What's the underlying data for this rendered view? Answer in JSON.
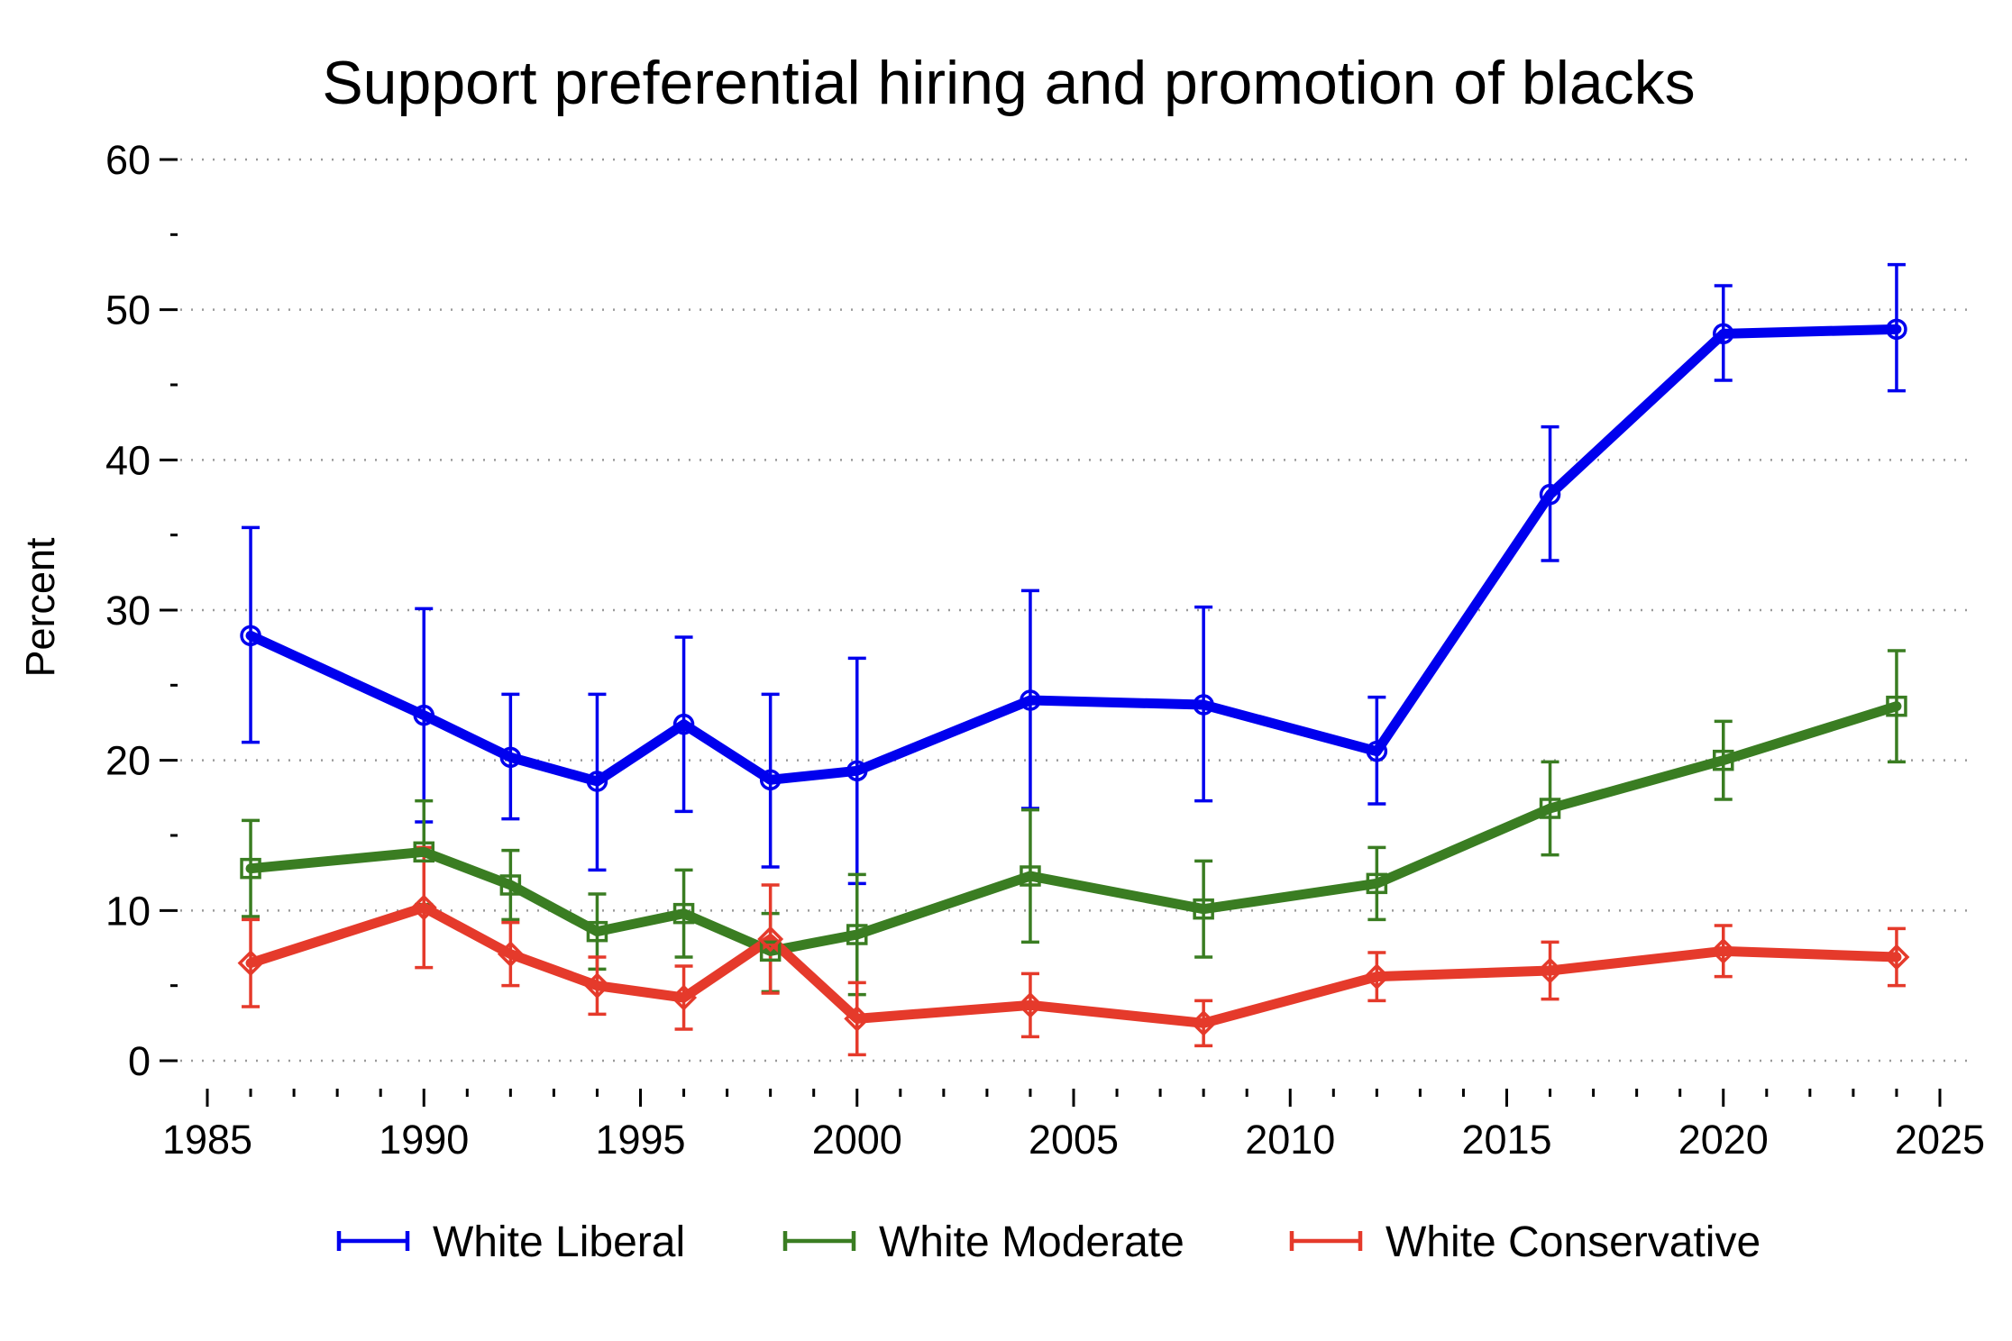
{
  "chart_data": {
    "type": "line",
    "title": "Support preferential hiring and promotion of blacks",
    "xlabel": "",
    "ylabel": "Percent",
    "xlim": [
      1985,
      2025
    ],
    "ylim": [
      0,
      60
    ],
    "x_ticks": [
      1985,
      1990,
      1995,
      2000,
      2005,
      2010,
      2015,
      2020,
      2025
    ],
    "y_ticks": [
      0,
      10,
      20,
      30,
      40,
      50,
      60
    ],
    "grid": "horizontal dotted",
    "legend_position": "bottom",
    "series": [
      {
        "name": "White Liberal",
        "color": "#0000ee",
        "marker": "circle",
        "x": [
          1986,
          1990,
          1992,
          1994,
          1996,
          1998,
          2000,
          2004,
          2008,
          2012,
          2016,
          2020,
          2024
        ],
        "y": [
          28.3,
          23.0,
          20.2,
          18.6,
          22.4,
          18.7,
          19.3,
          24.0,
          23.7,
          20.6,
          37.7,
          48.4,
          48.7
        ],
        "lower": [
          21.2,
          15.9,
          16.1,
          12.7,
          16.6,
          12.9,
          11.8,
          16.8,
          17.3,
          17.1,
          33.3,
          45.3,
          44.6
        ],
        "upper": [
          35.5,
          30.1,
          24.4,
          24.4,
          28.2,
          24.4,
          26.8,
          31.3,
          30.2,
          24.2,
          42.2,
          51.6,
          53.0
        ]
      },
      {
        "name": "White Moderate",
        "color": "#3a7d22",
        "marker": "square",
        "x": [
          1986,
          1990,
          1992,
          1994,
          1996,
          1998,
          2000,
          2004,
          2008,
          2012,
          2016,
          2020,
          2024
        ],
        "y": [
          12.8,
          13.9,
          11.7,
          8.6,
          9.8,
          7.3,
          8.4,
          12.3,
          10.1,
          11.8,
          16.8,
          20.0,
          23.6
        ],
        "lower": [
          9.6,
          10.4,
          9.4,
          6.1,
          6.9,
          4.6,
          4.4,
          7.9,
          6.9,
          9.4,
          13.7,
          17.4,
          19.9
        ],
        "upper": [
          16.0,
          17.3,
          14.0,
          11.1,
          12.7,
          9.8,
          12.4,
          16.7,
          13.3,
          14.2,
          19.9,
          22.6,
          27.3
        ]
      },
      {
        "name": "White Conservative",
        "color": "#e53a2b",
        "marker": "diamond",
        "x": [
          1986,
          1990,
          1992,
          1994,
          1996,
          1998,
          2000,
          2004,
          2008,
          2012,
          2016,
          2020,
          2024
        ],
        "y": [
          6.5,
          10.2,
          7.1,
          5.0,
          4.2,
          8.1,
          2.8,
          3.7,
          2.5,
          5.6,
          6.0,
          7.3,
          6.9
        ],
        "lower": [
          3.6,
          6.2,
          5.0,
          3.1,
          2.1,
          4.5,
          0.4,
          1.6,
          1.0,
          4.0,
          4.1,
          5.6,
          5.0
        ],
        "upper": [
          9.4,
          14.2,
          9.2,
          6.9,
          6.3,
          11.7,
          5.2,
          5.8,
          4.0,
          7.2,
          7.9,
          9.0,
          8.8
        ]
      }
    ]
  }
}
